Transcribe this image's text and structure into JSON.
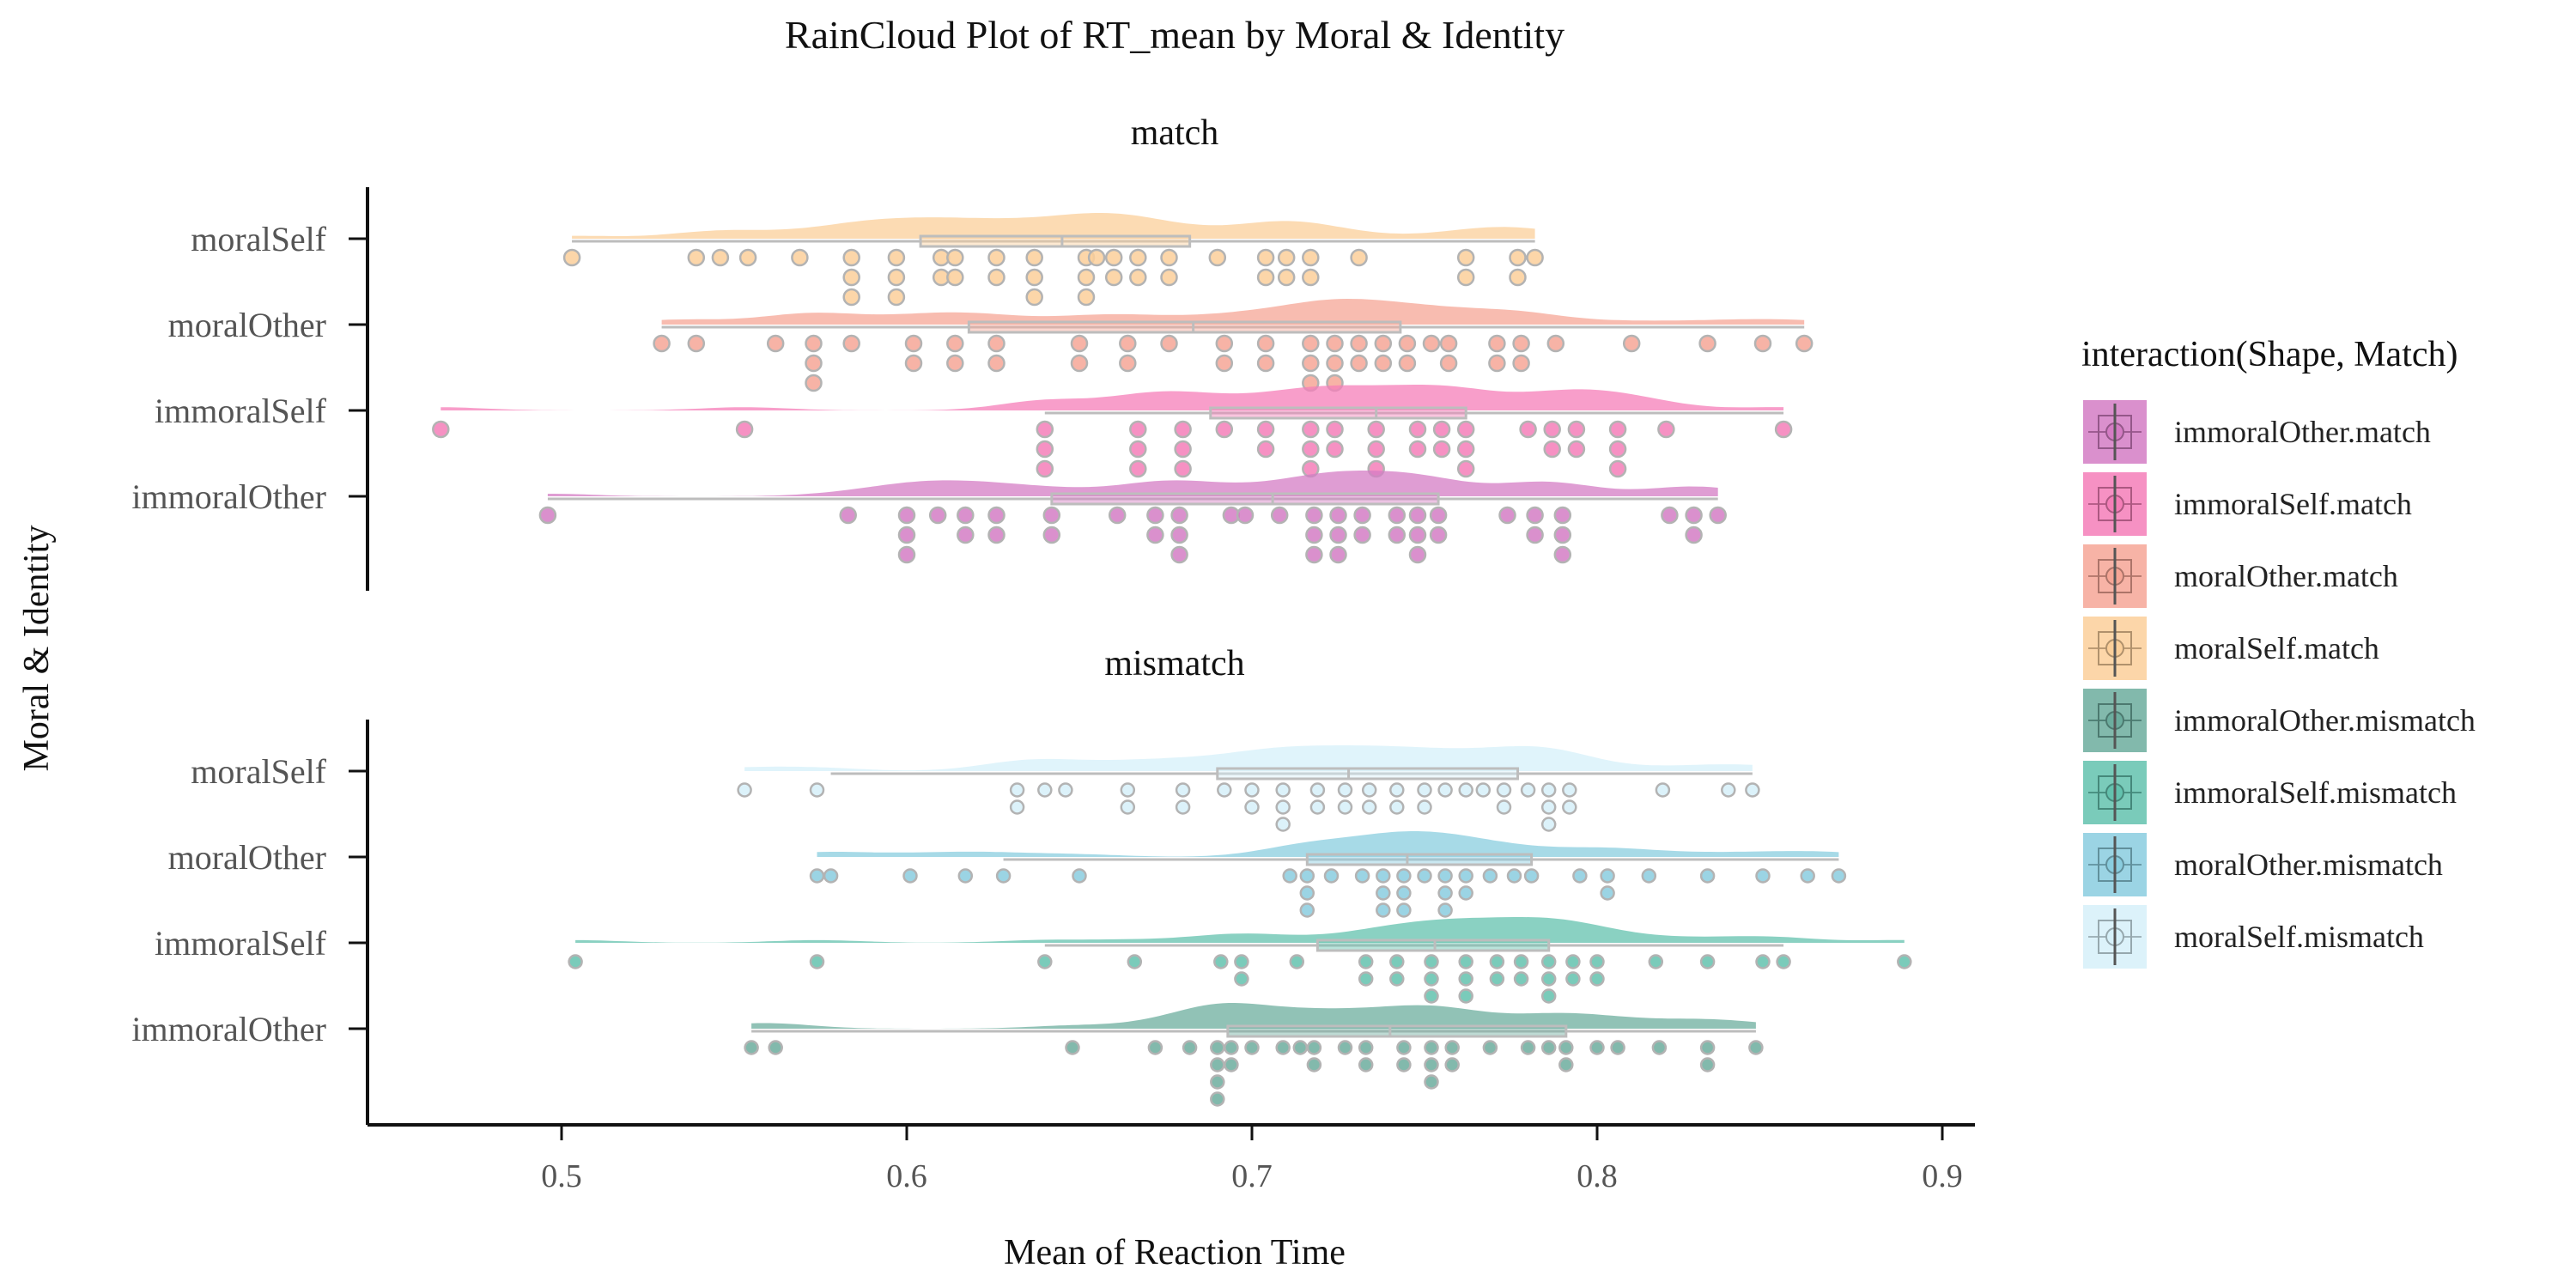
{
  "chart_data": {
    "type": "raincloud",
    "title": "RainCloud Plot of RT_mean by Moral & Identity",
    "xlabel": "Mean of Reaction Time",
    "ylabel": "Moral & Identity",
    "xlim": [
      0.445,
      0.9
    ],
    "x_ticks": [
      "0.5",
      "0.6",
      "0.7",
      "0.8",
      "0.9"
    ],
    "grid": false,
    "legend": {
      "title": "interaction(Shape, Match)",
      "placement": "right",
      "entries": [
        {
          "label": "immoralOther.match",
          "color": "#D47CC4"
        },
        {
          "label": "immoralSelf.match",
          "color": "#F57EB8"
        },
        {
          "label": "moralOther.match",
          "color": "#F6A696"
        },
        {
          "label": "moralSelf.match",
          "color": "#FBCF9A"
        },
        {
          "label": "immoralOther.mismatch",
          "color": "#6CAD9E"
        },
        {
          "label": "immoralSelf.mismatch",
          "color": "#63C2AE"
        },
        {
          "label": "moralOther.mismatch",
          "color": "#8ACDDF"
        },
        {
          "label": "moralSelf.mismatch",
          "color": "#D6F0F9"
        }
      ]
    },
    "panels": [
      {
        "title": "match",
        "categories": [
          "moralSelf",
          "moralOther",
          "immoralSelf",
          "immoralOther"
        ],
        "series": [
          {
            "category": "moralSelf",
            "legend": "moralSelf.match",
            "color": "#FBCF9A",
            "box": {
              "min": 0.503,
              "q1": 0.604,
              "median": 0.645,
              "q3": 0.682,
              "max": 0.782
            },
            "points": [
              0.503,
              0.539,
              0.546,
              0.554,
              0.569,
              0.584,
              0.584,
              0.584,
              0.597,
              0.597,
              0.597,
              0.61,
              0.61,
              0.614,
              0.614,
              0.626,
              0.626,
              0.637,
              0.637,
              0.637,
              0.652,
              0.652,
              0.652,
              0.655,
              0.66,
              0.66,
              0.667,
              0.667,
              0.676,
              0.676,
              0.69,
              0.704,
              0.704,
              0.71,
              0.71,
              0.717,
              0.717,
              0.731,
              0.762,
              0.762,
              0.777,
              0.777,
              0.782
            ]
          },
          {
            "category": "moralOther",
            "legend": "moralOther.match",
            "color": "#F6A696",
            "box": {
              "min": 0.529,
              "q1": 0.618,
              "median": 0.683,
              "q3": 0.743,
              "max": 0.86
            },
            "points": [
              0.529,
              0.539,
              0.562,
              0.573,
              0.573,
              0.573,
              0.584,
              0.602,
              0.602,
              0.614,
              0.614,
              0.626,
              0.626,
              0.65,
              0.65,
              0.664,
              0.664,
              0.676,
              0.692,
              0.692,
              0.704,
              0.704,
              0.717,
              0.717,
              0.717,
              0.724,
              0.724,
              0.724,
              0.731,
              0.731,
              0.738,
              0.738,
              0.745,
              0.745,
              0.752,
              0.757,
              0.757,
              0.771,
              0.771,
              0.778,
              0.778,
              0.788,
              0.81,
              0.832,
              0.848,
              0.86
            ]
          },
          {
            "category": "immoralSelf",
            "legend": "immoralSelf.match",
            "color": "#F57EB8",
            "box": {
              "min": 0.64,
              "q1": 0.688,
              "median": 0.736,
              "q3": 0.762,
              "max": 0.854
            },
            "points": [
              0.465,
              0.553,
              0.64,
              0.64,
              0.64,
              0.667,
              0.667,
              0.667,
              0.68,
              0.68,
              0.68,
              0.692,
              0.704,
              0.704,
              0.717,
              0.717,
              0.717,
              0.724,
              0.724,
              0.736,
              0.736,
              0.736,
              0.748,
              0.748,
              0.755,
              0.755,
              0.762,
              0.762,
              0.762,
              0.78,
              0.787,
              0.787,
              0.794,
              0.794,
              0.806,
              0.806,
              0.806,
              0.82,
              0.854
            ]
          },
          {
            "category": "immoralOther",
            "legend": "immoralOther.match",
            "color": "#D47CC4",
            "box": {
              "min": 0.496,
              "q1": 0.642,
              "median": 0.706,
              "q3": 0.754,
              "max": 0.835
            },
            "points": [
              0.496,
              0.583,
              0.6,
              0.6,
              0.6,
              0.609,
              0.617,
              0.617,
              0.626,
              0.626,
              0.642,
              0.642,
              0.661,
              0.672,
              0.672,
              0.679,
              0.679,
              0.679,
              0.694,
              0.698,
              0.708,
              0.718,
              0.718,
              0.718,
              0.725,
              0.725,
              0.725,
              0.732,
              0.732,
              0.742,
              0.742,
              0.748,
              0.748,
              0.748,
              0.754,
              0.754,
              0.774,
              0.782,
              0.782,
              0.79,
              0.79,
              0.79,
              0.821,
              0.828,
              0.828,
              0.835
            ]
          }
        ]
      },
      {
        "title": "mismatch",
        "categories": [
          "moralSelf",
          "moralOther",
          "immoralSelf",
          "immoralOther"
        ],
        "series": [
          {
            "category": "moralSelf",
            "legend": "moralSelf.mismatch",
            "color": "#D6F0F9",
            "box": {
              "min": 0.578,
              "q1": 0.69,
              "median": 0.728,
              "q3": 0.777,
              "max": 0.845
            },
            "points": [
              0.553,
              0.574,
              0.632,
              0.632,
              0.64,
              0.646,
              0.664,
              0.664,
              0.68,
              0.68,
              0.692,
              0.7,
              0.7,
              0.709,
              0.709,
              0.709,
              0.719,
              0.719,
              0.727,
              0.727,
              0.734,
              0.734,
              0.742,
              0.742,
              0.75,
              0.75,
              0.756,
              0.762,
              0.767,
              0.773,
              0.773,
              0.78,
              0.786,
              0.786,
              0.786,
              0.792,
              0.792,
              0.819,
              0.838,
              0.845
            ]
          },
          {
            "category": "moralOther",
            "legend": "moralOther.mismatch",
            "color": "#8ACDDF",
            "box": {
              "min": 0.628,
              "q1": 0.716,
              "median": 0.745,
              "q3": 0.781,
              "max": 0.87
            },
            "points": [
              0.574,
              0.578,
              0.601,
              0.617,
              0.628,
              0.65,
              0.711,
              0.716,
              0.716,
              0.716,
              0.723,
              0.732,
              0.738,
              0.738,
              0.738,
              0.744,
              0.744,
              0.744,
              0.75,
              0.756,
              0.756,
              0.756,
              0.762,
              0.762,
              0.769,
              0.776,
              0.781,
              0.795,
              0.803,
              0.803,
              0.815,
              0.832,
              0.848,
              0.861,
              0.87
            ]
          },
          {
            "category": "immoralSelf",
            "legend": "immoralSelf.mismatch",
            "color": "#63C2AE",
            "box": {
              "min": 0.64,
              "q1": 0.719,
              "median": 0.753,
              "q3": 0.786,
              "max": 0.854
            },
            "points": [
              0.504,
              0.574,
              0.64,
              0.666,
              0.691,
              0.697,
              0.697,
              0.713,
              0.733,
              0.733,
              0.742,
              0.742,
              0.752,
              0.752,
              0.752,
              0.762,
              0.762,
              0.762,
              0.771,
              0.771,
              0.778,
              0.778,
              0.786,
              0.786,
              0.786,
              0.793,
              0.793,
              0.8,
              0.8,
              0.817,
              0.832,
              0.848,
              0.854,
              0.889
            ]
          },
          {
            "category": "immoralOther",
            "legend": "immoralOther.mismatch",
            "color": "#6CAD9E",
            "box": {
              "min": 0.555,
              "q1": 0.693,
              "median": 0.74,
              "q3": 0.791,
              "max": 0.846
            },
            "points": [
              0.555,
              0.562,
              0.648,
              0.672,
              0.682,
              0.69,
              0.69,
              0.69,
              0.69,
              0.694,
              0.694,
              0.7,
              0.709,
              0.714,
              0.718,
              0.718,
              0.727,
              0.733,
              0.733,
              0.744,
              0.744,
              0.752,
              0.752,
              0.752,
              0.758,
              0.758,
              0.769,
              0.78,
              0.786,
              0.791,
              0.791,
              0.8,
              0.806,
              0.818,
              0.832,
              0.832,
              0.846
            ]
          }
        ]
      }
    ]
  }
}
